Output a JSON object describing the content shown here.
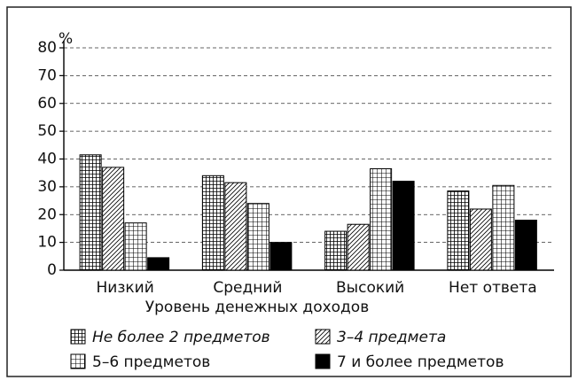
{
  "chart_data": {
    "type": "bar",
    "y_unit": "%",
    "x_label": "Уровень денежных доходов",
    "categories": [
      "Низкий",
      "Средний",
      "Высокий",
      "Нет ответа"
    ],
    "series": [
      {
        "name": "Не более 2 предметов",
        "color": "#000000",
        "values": [
          41.5,
          34,
          14,
          28.5
        ]
      },
      {
        "name": "3–4 предмета",
        "color": "#000000",
        "values": [
          37,
          31.5,
          16.5,
          22
        ]
      },
      {
        "name": "5–6 предметов",
        "color": "#000000",
        "values": [
          17,
          24,
          36.5,
          30.5
        ]
      },
      {
        "name": "7 и более предметов",
        "color": "#000000",
        "values": [
          4.5,
          10,
          32,
          18
        ]
      }
    ],
    "ylim": [
      0,
      80
    ],
    "yticks": [
      0,
      10,
      20,
      30,
      40,
      50,
      60,
      70,
      80
    ],
    "grid": true
  }
}
